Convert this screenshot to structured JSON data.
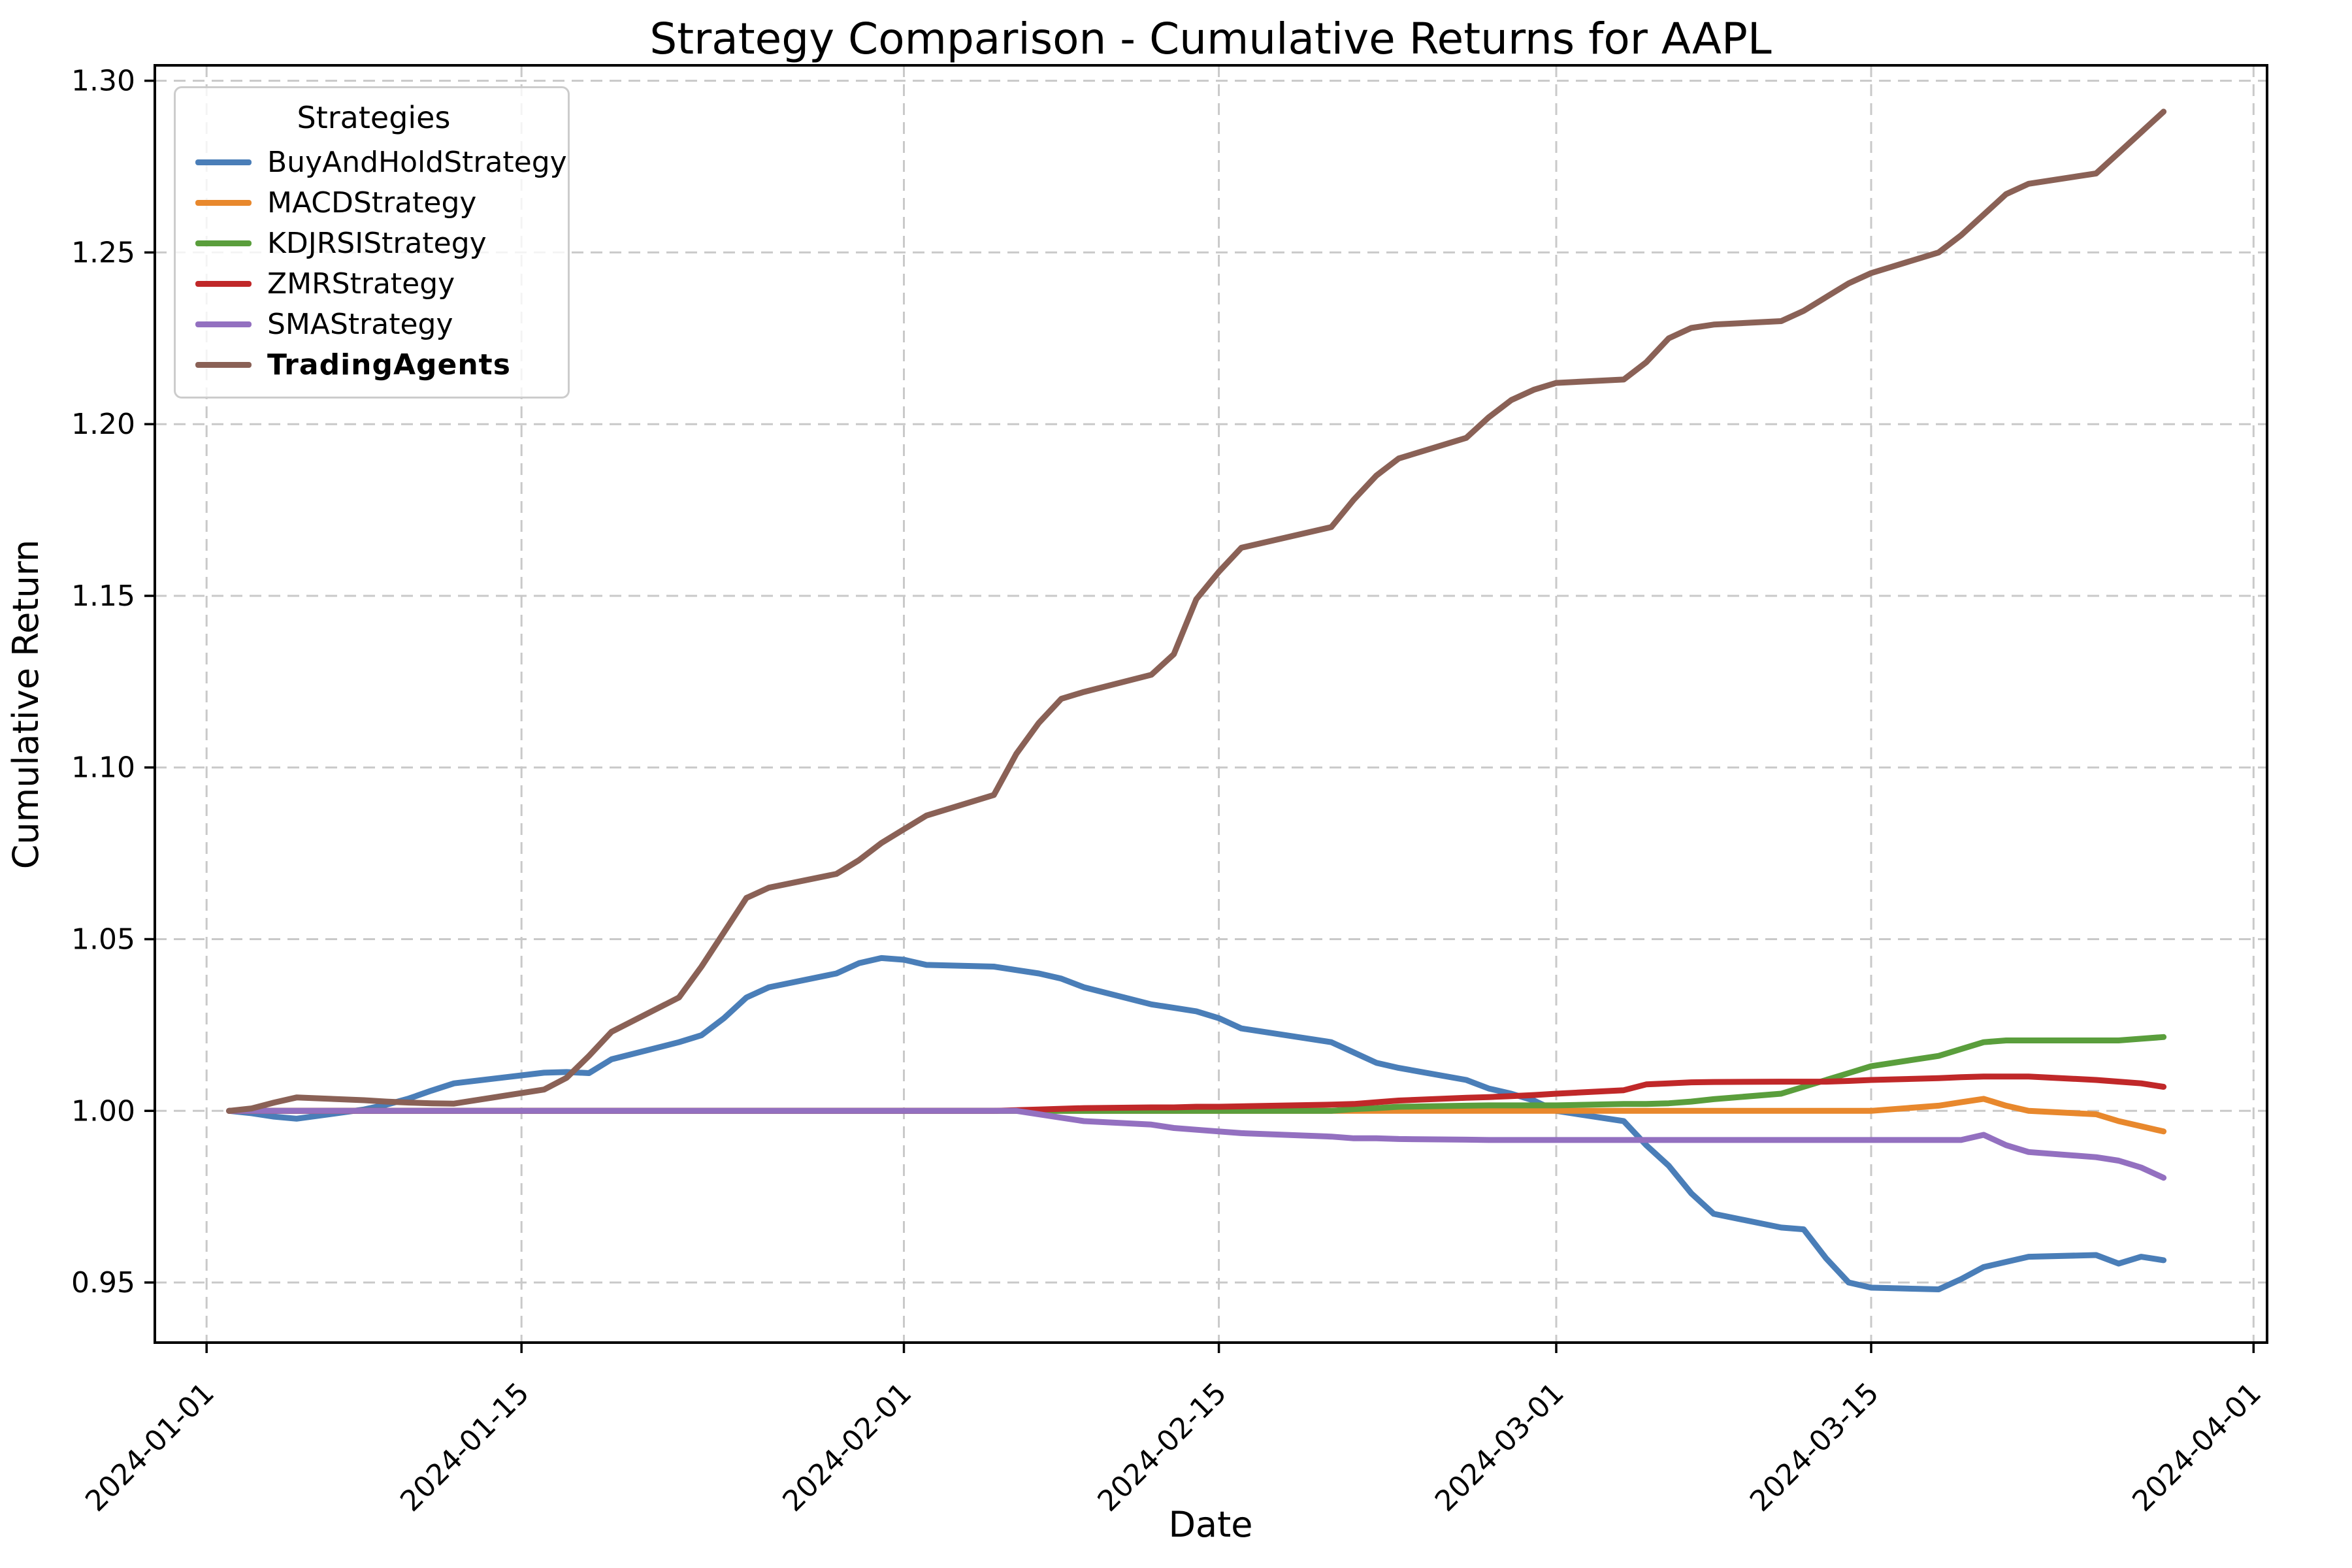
{
  "title": "Strategy Comparison - Cumulative Returns for AAPL",
  "xlabel": "Date",
  "ylabel": "Cumulative Return",
  "legend": {
    "title": "Strategies",
    "items": [
      {
        "label": "BuyAndHoldStrategy",
        "color": "#4a7eb8",
        "bold": false
      },
      {
        "label": "MACDStrategy",
        "color": "#e8882d",
        "bold": false
      },
      {
        "label": "KDJRSIStrategy",
        "color": "#5a9e3c",
        "bold": false
      },
      {
        "label": "ZMRStrategy",
        "color": "#c02829",
        "bold": false
      },
      {
        "label": "SMAStrategy",
        "color": "#9370c0",
        "bold": false
      },
      {
        "label": "TradingAgents",
        "color": "#8a6156",
        "bold": true
      }
    ]
  },
  "chart_data": {
    "type": "line",
    "title": "Strategy Comparison - Cumulative Returns for AAPL",
    "xlabel": "Date",
    "ylabel": "Cumulative Return",
    "grid": "dashed",
    "legend_position": "upper left",
    "ylim": [
      0.9325,
      1.3045
    ],
    "y_ticks": [
      0.95,
      1.0,
      1.05,
      1.1,
      1.15,
      1.2,
      1.25,
      1.3
    ],
    "x_tick_dates": [
      "2024-01-01",
      "2024-01-15",
      "2024-02-01",
      "2024-02-15",
      "2024-03-01",
      "2024-03-15",
      "2024-04-01"
    ],
    "x": [
      "2024-01-02",
      "2024-01-03",
      "2024-01-04",
      "2024-01-05",
      "2024-01-08",
      "2024-01-09",
      "2024-01-10",
      "2024-01-11",
      "2024-01-12",
      "2024-01-16",
      "2024-01-17",
      "2024-01-18",
      "2024-01-19",
      "2024-01-22",
      "2024-01-23",
      "2024-01-24",
      "2024-01-25",
      "2024-01-26",
      "2024-01-29",
      "2024-01-30",
      "2024-01-31",
      "2024-02-01",
      "2024-02-02",
      "2024-02-05",
      "2024-02-06",
      "2024-02-07",
      "2024-02-08",
      "2024-02-09",
      "2024-02-12",
      "2024-02-13",
      "2024-02-14",
      "2024-02-15",
      "2024-02-16",
      "2024-02-20",
      "2024-02-21",
      "2024-02-22",
      "2024-02-23",
      "2024-02-26",
      "2024-02-27",
      "2024-02-28",
      "2024-02-29",
      "2024-03-01",
      "2024-03-04",
      "2024-03-05",
      "2024-03-06",
      "2024-03-07",
      "2024-03-08",
      "2024-03-11",
      "2024-03-12",
      "2024-03-13",
      "2024-03-14",
      "2024-03-15",
      "2024-03-18",
      "2024-03-19",
      "2024-03-20",
      "2024-03-21",
      "2024-03-22",
      "2024-03-25",
      "2024-03-26",
      "2024-03-27",
      "2024-03-28"
    ],
    "series": [
      {
        "name": "BuyAndHoldStrategy",
        "color": "#4a7eb8",
        "values": [
          1.0,
          0.9993,
          0.9983,
          0.9977,
          1.0004,
          1.0018,
          1.0036,
          1.0059,
          1.008,
          1.0111,
          1.0113,
          1.011,
          1.015,
          1.02,
          1.022,
          1.027,
          1.033,
          1.036,
          1.04,
          1.043,
          1.0445,
          1.044,
          1.0425,
          1.042,
          1.041,
          1.04,
          1.0385,
          1.036,
          1.031,
          1.03,
          1.029,
          1.027,
          1.024,
          1.02,
          1.017,
          1.014,
          1.0125,
          1.009,
          1.0065,
          1.005,
          1.003,
          1.0,
          0.997,
          0.99,
          0.984,
          0.976,
          0.97,
          0.966,
          0.9655,
          0.957,
          0.95,
          0.9485,
          0.948,
          0.951,
          0.9545,
          0.956,
          0.9575,
          0.958,
          0.9555,
          0.9575,
          0.9565
        ]
      },
      {
        "name": "MACDStrategy",
        "color": "#e8882d",
        "values": [
          1.0,
          1.0,
          1.0,
          1.0,
          1.0,
          1.0,
          1.0,
          1.0,
          1.0,
          1.0,
          1.0,
          1.0,
          1.0,
          1.0,
          1.0,
          1.0,
          1.0,
          1.0,
          1.0,
          1.0,
          1.0,
          1.0,
          1.0,
          1.0,
          1.0,
          1.0,
          1.0,
          1.0,
          1.0,
          1.0,
          1.0,
          1.0,
          1.0,
          1.0,
          1.0,
          1.0,
          1.0,
          1.0,
          1.0,
          1.0,
          1.0,
          1.0,
          1.0,
          1.0,
          1.0,
          1.0,
          1.0,
          1.0,
          1.0,
          1.0,
          1.0,
          1.0,
          1.0015,
          1.0025,
          1.0035,
          1.0015,
          1.0,
          0.999,
          0.997,
          0.9955,
          0.994
        ]
      },
      {
        "name": "KDJRSIStrategy",
        "color": "#5a9e3c",
        "values": [
          1.0,
          1.0,
          1.0,
          1.0,
          1.0,
          1.0,
          1.0,
          1.0,
          1.0,
          1.0,
          1.0,
          1.0,
          1.0,
          1.0,
          1.0,
          1.0,
          1.0,
          1.0,
          1.0,
          1.0,
          1.0,
          1.0,
          1.0,
          1.0,
          1.0,
          1.0,
          1.0,
          1.0,
          1.0,
          1.0,
          1.0,
          1.0,
          1.0,
          1.0,
          1.0005,
          1.0008,
          1.0012,
          1.0015,
          1.0016,
          1.0016,
          1.0016,
          1.0016,
          1.002,
          1.002,
          1.0022,
          1.0027,
          1.0034,
          1.005,
          1.007,
          1.009,
          1.011,
          1.013,
          1.016,
          1.018,
          1.02,
          1.0205,
          1.0205,
          1.0205,
          1.0205,
          1.021,
          1.0215
        ]
      },
      {
        "name": "ZMRStrategy",
        "color": "#c02829",
        "values": [
          1.0,
          1.0,
          1.0,
          1.0,
          1.0,
          1.0,
          1.0,
          1.0,
          1.0,
          1.0,
          1.0,
          1.0,
          1.0,
          1.0,
          1.0,
          1.0,
          1.0,
          1.0,
          1.0,
          1.0,
          1.0,
          1.0,
          1.0,
          1.0,
          1.0002,
          1.0004,
          1.0006,
          1.0008,
          1.001,
          1.001,
          1.0012,
          1.0012,
          1.0013,
          1.0018,
          1.002,
          1.0025,
          1.003,
          1.0038,
          1.004,
          1.0043,
          1.0046,
          1.005,
          1.006,
          1.0077,
          1.008,
          1.0083,
          1.0084,
          1.0085,
          1.0085,
          1.0085,
          1.0087,
          1.009,
          1.0095,
          1.0098,
          1.01,
          1.01,
          1.01,
          1.009,
          1.0085,
          1.008,
          1.007
        ]
      },
      {
        "name": "SMAStrategy",
        "color": "#9370c0",
        "values": [
          1.0,
          1.0,
          1.0,
          1.0,
          1.0,
          1.0,
          1.0,
          1.0,
          1.0,
          1.0,
          1.0,
          1.0,
          1.0,
          1.0,
          1.0,
          1.0,
          1.0,
          1.0,
          1.0,
          1.0,
          1.0,
          1.0,
          1.0,
          1.0,
          1.0,
          0.999,
          0.998,
          0.997,
          0.996,
          0.995,
          0.9945,
          0.994,
          0.9935,
          0.9925,
          0.992,
          0.992,
          0.9918,
          0.9916,
          0.9915,
          0.9915,
          0.9915,
          0.9915,
          0.9915,
          0.9915,
          0.9915,
          0.9915,
          0.9915,
          0.9915,
          0.9915,
          0.9915,
          0.9915,
          0.9915,
          0.9915,
          0.9915,
          0.993,
          0.99,
          0.988,
          0.9865,
          0.9855,
          0.9835,
          0.9805
        ]
      },
      {
        "name": "TradingAgents",
        "color": "#8a6156",
        "values": [
          1.0,
          1.0007,
          1.0024,
          1.0039,
          1.0031,
          1.0027,
          1.0024,
          1.0022,
          1.0021,
          1.0062,
          1.0096,
          1.016,
          1.023,
          1.033,
          1.042,
          1.052,
          1.062,
          1.065,
          1.069,
          1.073,
          1.078,
          1.082,
          1.086,
          1.092,
          1.104,
          1.113,
          1.12,
          1.122,
          1.127,
          1.133,
          1.149,
          1.157,
          1.164,
          1.17,
          1.178,
          1.185,
          1.19,
          1.196,
          1.202,
          1.207,
          1.21,
          1.212,
          1.213,
          1.218,
          1.225,
          1.228,
          1.229,
          1.23,
          1.233,
          1.237,
          1.241,
          1.244,
          1.25,
          1.255,
          1.261,
          1.267,
          1.27,
          1.273,
          1.279,
          1.285,
          1.291
        ]
      }
    ]
  }
}
